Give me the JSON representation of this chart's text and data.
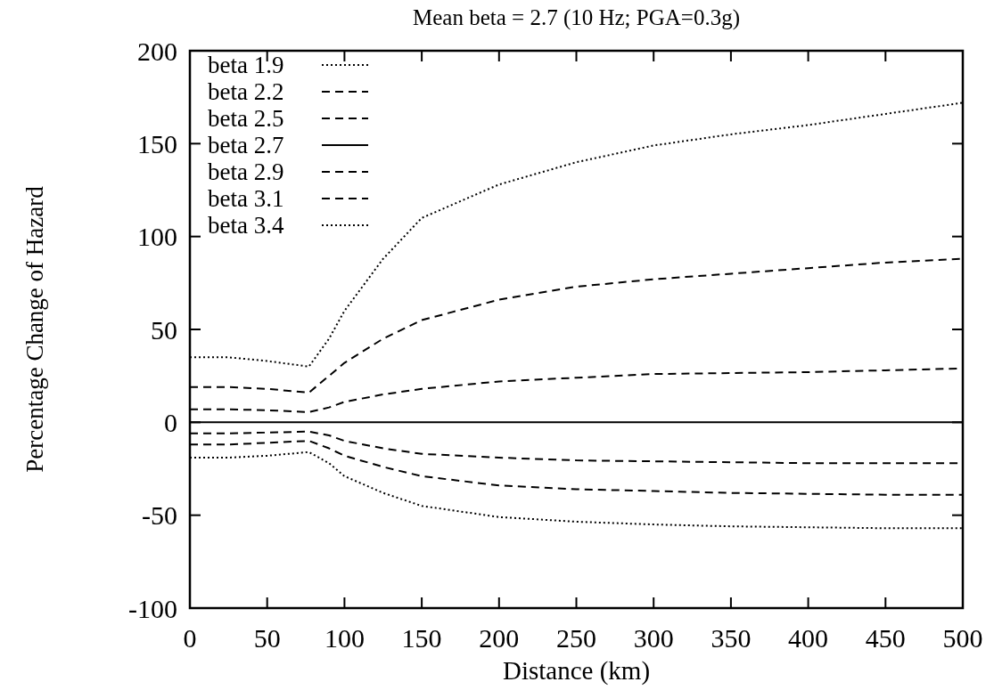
{
  "chart_data": {
    "type": "line",
    "title": "Mean beta = 2.7 (10 Hz; PGA=0.3g)",
    "xlabel": "Distance (km)",
    "ylabel": "Percentage Change of Hazard",
    "x": [
      0,
      25,
      50,
      77,
      90,
      100,
      125,
      150,
      200,
      250,
      300,
      350,
      400,
      450,
      500
    ],
    "series": [
      {
        "name": "beta 1.9",
        "color": "#000000",
        "line_style": "dotted",
        "values": [
          35,
          35,
          33,
          30,
          45,
          60,
          88,
          110,
          128,
          140,
          149,
          155,
          160,
          166,
          172
        ]
      },
      {
        "name": "beta 2.2",
        "color": "#000000",
        "line_style": "dashed",
        "values": [
          19,
          19,
          18,
          16,
          25,
          32,
          45,
          55,
          66,
          73,
          77,
          80,
          83,
          86,
          88
        ]
      },
      {
        "name": "beta 2.5",
        "color": "#000000",
        "line_style": "dashed",
        "values": [
          7,
          7,
          6.5,
          5.5,
          8,
          11,
          15,
          18,
          22,
          24,
          26,
          26.5,
          27,
          28,
          29
        ]
      },
      {
        "name": "beta 2.7",
        "color": "#000000",
        "line_style": "solid",
        "values": [
          0,
          0,
          0,
          0,
          0,
          0,
          0,
          0,
          0,
          0,
          0,
          0,
          0,
          0,
          0
        ]
      },
      {
        "name": "beta 2.9",
        "color": "#000000",
        "line_style": "dashed",
        "values": [
          -6,
          -6,
          -5.5,
          -5,
          -7,
          -10,
          -14,
          -17,
          -19,
          -20.5,
          -21,
          -21.5,
          -22,
          -22,
          -22
        ]
      },
      {
        "name": "beta 3.1",
        "color": "#000000",
        "line_style": "dashed",
        "values": [
          -12,
          -12,
          -11,
          -10,
          -14,
          -18,
          -24,
          -29,
          -34,
          -36,
          -37,
          -38,
          -38.5,
          -39,
          -39
        ]
      },
      {
        "name": "beta 3.4",
        "color": "#000000",
        "line_style": "dotted",
        "values": [
          -19,
          -19,
          -18,
          -16,
          -22,
          -29,
          -38,
          -45,
          -51,
          -53.5,
          -55,
          -56,
          -56.5,
          -57,
          -57
        ]
      }
    ],
    "xlim": [
      0,
      500
    ],
    "xticks": [
      0,
      50,
      100,
      150,
      200,
      250,
      300,
      350,
      400,
      450,
      500
    ],
    "ylim": [
      -100,
      200
    ],
    "yticks": [
      -100,
      -50,
      0,
      50,
      100,
      150,
      200
    ],
    "legend": "top left",
    "grid": false
  }
}
